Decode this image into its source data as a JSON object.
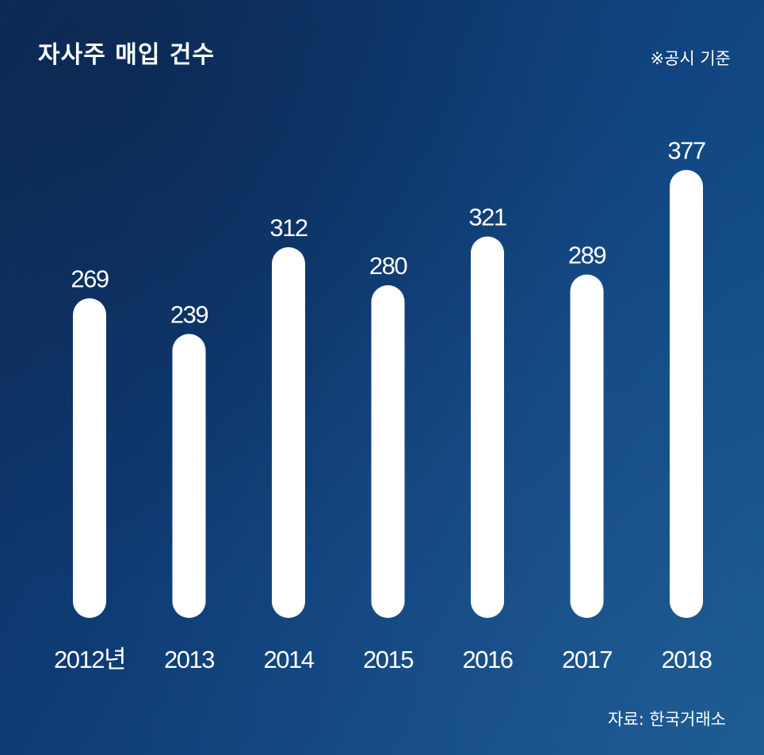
{
  "title": "자사주 매입 건수",
  "note": "※공시 기준",
  "source": "자료: 한국거래소",
  "colors": {
    "background": "#0f3b73",
    "bar": "#ffffff",
    "text": "#ffffff"
  },
  "chart_data": {
    "type": "bar",
    "categories": [
      "2012년",
      "2013",
      "2014",
      "2015",
      "2016",
      "2017",
      "2018"
    ],
    "values": [
      269,
      239,
      312,
      280,
      321,
      289,
      377
    ],
    "data_labels": [
      "269",
      "239",
      "312",
      "280",
      "321",
      "289",
      "377"
    ],
    "title": "자사주 매입 건수",
    "xlabel": "",
    "ylabel": "",
    "grid": false,
    "legend": "none"
  }
}
